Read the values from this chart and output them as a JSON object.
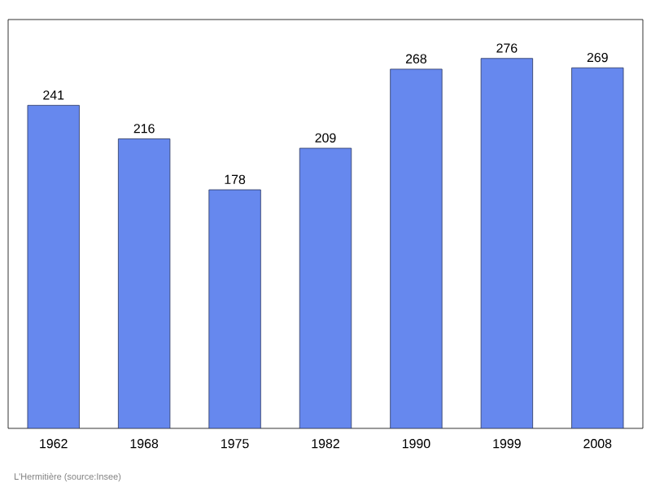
{
  "chart_data": {
    "type": "bar",
    "categories": [
      "1962",
      "1968",
      "1975",
      "1982",
      "1990",
      "1999",
      "2008"
    ],
    "values": [
      241,
      216,
      178,
      209,
      268,
      276,
      269
    ],
    "color": "#6688ee",
    "ylim": [
      0,
      305
    ],
    "data_labels": true,
    "annotations": [
      "L'Hermitière    (source:Insee)"
    ]
  }
}
